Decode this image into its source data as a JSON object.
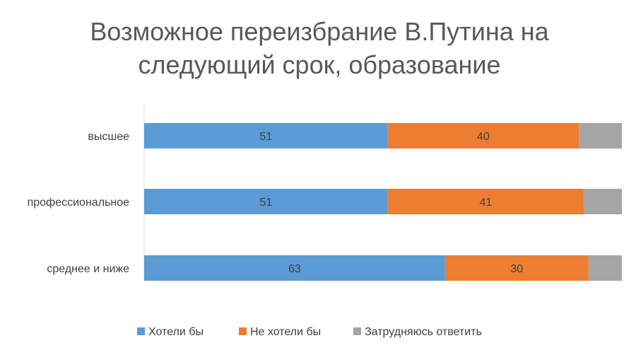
{
  "chart_data": {
    "type": "bar",
    "orientation": "horizontal",
    "stacked": true,
    "title": "Возможное переизбрание В.Путина на следующий срок, образование",
    "title_lines": [
      "Возможное переизбрание В.Путина на",
      "следующий срок, образование"
    ],
    "categories": [
      "высшее",
      "профессиональное",
      "среднее и ниже"
    ],
    "series": [
      {
        "name": "Хотели бы",
        "values": [
          51,
          51,
          63
        ],
        "color": "#5B9BD5",
        "labels": [
          "51",
          "51",
          "63"
        ]
      },
      {
        "name": "Не хотели бы",
        "values": [
          40,
          41,
          30
        ],
        "color": "#ED7D31",
        "labels": [
          "40",
          "41",
          "30"
        ]
      },
      {
        "name": "Затрудняюсь ответить",
        "values": [
          9,
          8,
          7
        ],
        "color": "#A5A5A5",
        "labels": [
          "",
          "",
          ""
        ]
      }
    ],
    "xlim": [
      0,
      100
    ],
    "grid": false,
    "legend_position": "bottom"
  }
}
